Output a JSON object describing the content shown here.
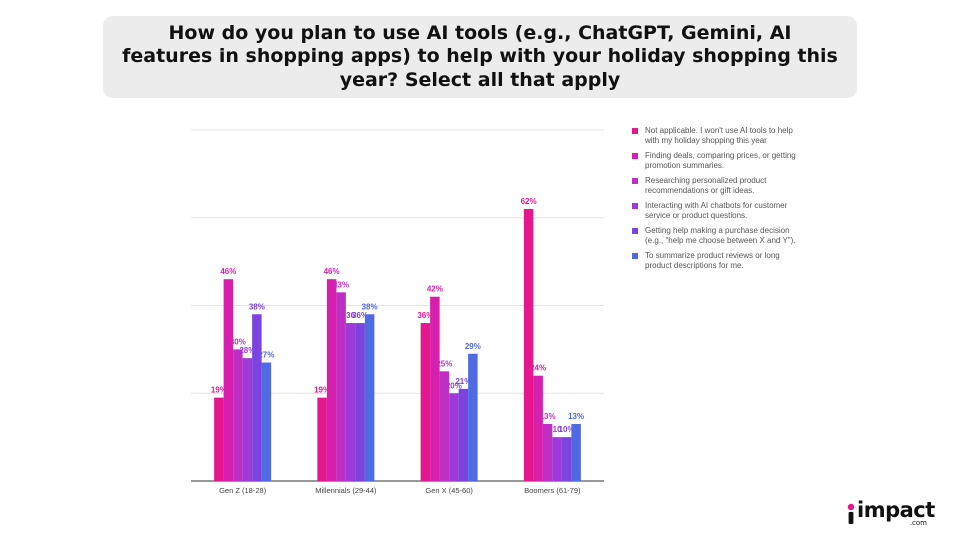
{
  "title": "How do you plan to use AI tools (e.g., ChatGPT, Gemini, AI features in shopping apps) to help with your holiday shopping this year? Select all that apply",
  "logo": {
    "word": "impact",
    "sub": ".com"
  },
  "chart_data": {
    "type": "bar",
    "categories": [
      "Gen Z (18-28)",
      "Millennials (29-44)",
      "Gen X (45-60)",
      "Boomers (61-79)"
    ],
    "ylim": [
      0,
      80
    ],
    "grid": true,
    "legend_position": "right",
    "series": [
      {
        "name": "Not applicable. I won't use AI tools to help with my holiday shopping this year",
        "color": "#e5178e",
        "values": [
          19,
          19,
          36,
          62
        ],
        "labels": [
          "19%",
          "19%",
          "36%",
          "62%"
        ]
      },
      {
        "name": "Finding deals, comparing prices, or getting promotion summaries.",
        "color": "#d71fae",
        "values": [
          46,
          46,
          42,
          24
        ],
        "labels": [
          "46%",
          "46%",
          "42%",
          "24%"
        ]
      },
      {
        "name": "Researching personalized product recommendations or gift ideas.",
        "color": "#c02fc4",
        "values": [
          30,
          43,
          25,
          13
        ],
        "labels": [
          "30%",
          "43%",
          "25%",
          "13%"
        ]
      },
      {
        "name": "Interacting with AI chatbots for customer service or product questions.",
        "color": "#9d3ad8",
        "values": [
          28,
          36,
          20,
          10
        ],
        "labels": [
          "28%",
          "36",
          "20%",
          "10"
        ]
      },
      {
        "name": "Getting help making a purchase decision (e.g., \"help me choose between X and Y\").",
        "color": "#7c44df",
        "values": [
          38,
          36,
          21,
          10
        ],
        "labels": [
          "38%",
          "36%",
          "21%",
          "10%"
        ]
      },
      {
        "name": "To summarize product reviews or long product descriptions for me.",
        "color": "#4f6ae2",
        "values": [
          27,
          38,
          29,
          13
        ],
        "labels": [
          "27%",
          "38%",
          "29%",
          "13%"
        ]
      }
    ]
  }
}
